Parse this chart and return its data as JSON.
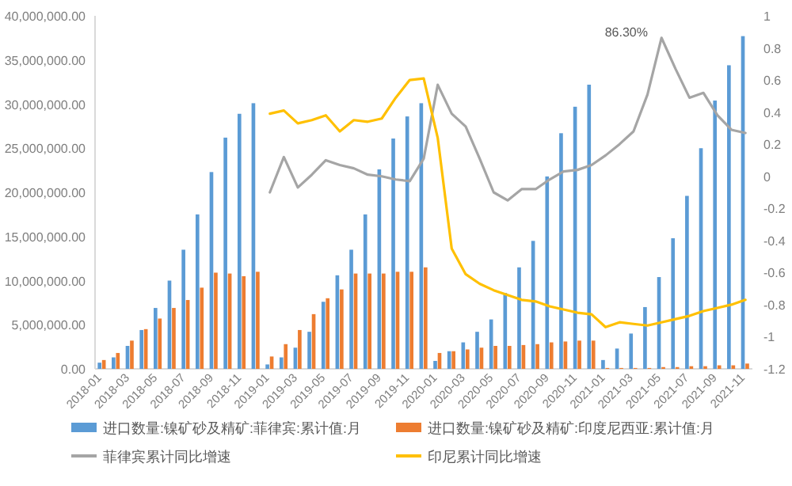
{
  "chart_data": {
    "type": "bar",
    "categories": [
      "2018-01",
      null,
      "2018-03",
      null,
      "2018-05",
      null,
      "2018-07",
      null,
      "2018-09",
      null,
      "2018-11",
      null,
      "2019-01",
      null,
      "2019-03",
      null,
      "2019-05",
      null,
      "2019-07",
      null,
      "2019-09",
      null,
      "2019-11",
      null,
      "2020-01",
      null,
      "2020-03",
      null,
      "2020-05",
      null,
      "2020-07",
      null,
      "2020-09",
      null,
      "2020-11",
      null,
      "2021-01",
      null,
      "2021-03",
      null,
      "2021-05",
      null,
      "2021-07",
      null,
      "2021-09",
      null,
      "2021-11"
    ],
    "ylim": [
      0,
      40000000
    ],
    "yticks": [
      {
        "value": 0,
        "label": "0.00"
      },
      {
        "value": 5000000,
        "label": "5,000,000.00"
      },
      {
        "value": 10000000,
        "label": "10,000,000.00"
      },
      {
        "value": 15000000,
        "label": "15,000,000.00"
      },
      {
        "value": 20000000,
        "label": "20,000,000.00"
      },
      {
        "value": 25000000,
        "label": "25,000,000.00"
      },
      {
        "value": 30000000,
        "label": "30,000,000.00"
      },
      {
        "value": 35000000,
        "label": "35,000,000.00"
      },
      {
        "value": 40000000,
        "label": "40,000,000.00"
      }
    ],
    "y2lim": [
      -1.2,
      1
    ],
    "y2ticks": [
      {
        "value": -1.2,
        "label": "-1.2"
      },
      {
        "value": -1,
        "label": "-1"
      },
      {
        "value": -0.8,
        "label": "-0.8"
      },
      {
        "value": -0.6,
        "label": "-0.6"
      },
      {
        "value": -0.4,
        "label": "-0.4"
      },
      {
        "value": -0.2,
        "label": "-0.2"
      },
      0,
      0.2,
      0.4,
      0.6,
      0.8,
      1
    ],
    "legend": "bottom",
    "annotations": [
      "86.30%"
    ],
    "series": [
      {
        "name": "进口数量:镍矿砂及精矿:菲律宾:累计值:月",
        "color": "#5b9bd5",
        "values": [
          700000,
          1300000,
          2600000,
          4400000,
          6900000,
          10000000,
          13500000,
          17500000,
          22300000,
          26200000,
          28900000,
          30100000,
          500000,
          1300000,
          2400000,
          4200000,
          7600000,
          10600000,
          13500000,
          17500000,
          22600000,
          26100000,
          28600000,
          30100000,
          900000,
          2000000,
          3000000,
          4200000,
          5600000,
          8600000,
          11500000,
          14500000,
          21800000,
          26700000,
          29700000,
          32200000,
          1000000,
          2300000,
          4000000,
          7000000,
          10400000,
          14800000,
          19600000,
          25000000,
          30400000,
          34400000,
          37700000
        ]
      },
      {
        "name": "进口数量:镍矿砂及精矿:印度尼西亚:累计值:月",
        "color": "#ed7d31",
        "values": [
          1000000,
          1800000,
          3200000,
          4500000,
          5700000,
          6900000,
          7800000,
          9200000,
          10900000,
          10800000,
          10500000,
          11000000,
          1400000,
          2800000,
          4400000,
          6200000,
          8000000,
          9000000,
          10800000,
          10800000,
          10800000,
          11000000,
          11000000,
          11500000,
          1800000,
          2000000,
          2200000,
          2400000,
          2600000,
          2600000,
          2700000,
          2800000,
          3000000,
          3100000,
          3200000,
          3200000,
          100000,
          100000,
          100000,
          100000,
          200000,
          200000,
          300000,
          300000,
          400000,
          400000,
          600000
        ]
      },
      {
        "name": "菲律宾累计同比增速",
        "type": "line",
        "axis": "y2",
        "color": "#a5a5a5",
        "values": [
          null,
          null,
          null,
          null,
          null,
          null,
          null,
          null,
          null,
          null,
          null,
          null,
          -0.1,
          0.12,
          -0.07,
          0.01,
          0.1,
          0.07,
          0.05,
          0.01,
          0.0,
          -0.02,
          -0.03,
          0.11,
          0.57,
          0.39,
          0.31,
          0.11,
          -0.1,
          -0.15,
          -0.08,
          -0.08,
          -0.02,
          0.03,
          0.04,
          0.07,
          0.13,
          0.2,
          0.28,
          0.51,
          0.863,
          0.67,
          0.49,
          0.52,
          0.38,
          0.29,
          0.27
        ]
      },
      {
        "name": "印尼累计同比增速",
        "type": "line",
        "axis": "y2",
        "color": "#ffc000",
        "values": [
          null,
          null,
          null,
          null,
          null,
          null,
          null,
          null,
          null,
          null,
          null,
          null,
          0.39,
          0.41,
          0.33,
          0.35,
          0.38,
          0.28,
          0.35,
          0.34,
          0.36,
          0.49,
          0.6,
          0.61,
          0.24,
          -0.45,
          -0.61,
          -0.67,
          -0.71,
          -0.74,
          -0.77,
          -0.78,
          -0.81,
          -0.83,
          -0.85,
          -0.86,
          -0.94,
          -0.91,
          -0.92,
          -0.93,
          -0.91,
          -0.89,
          -0.87,
          -0.84,
          -0.82,
          -0.8,
          -0.77
        ]
      }
    ]
  }
}
